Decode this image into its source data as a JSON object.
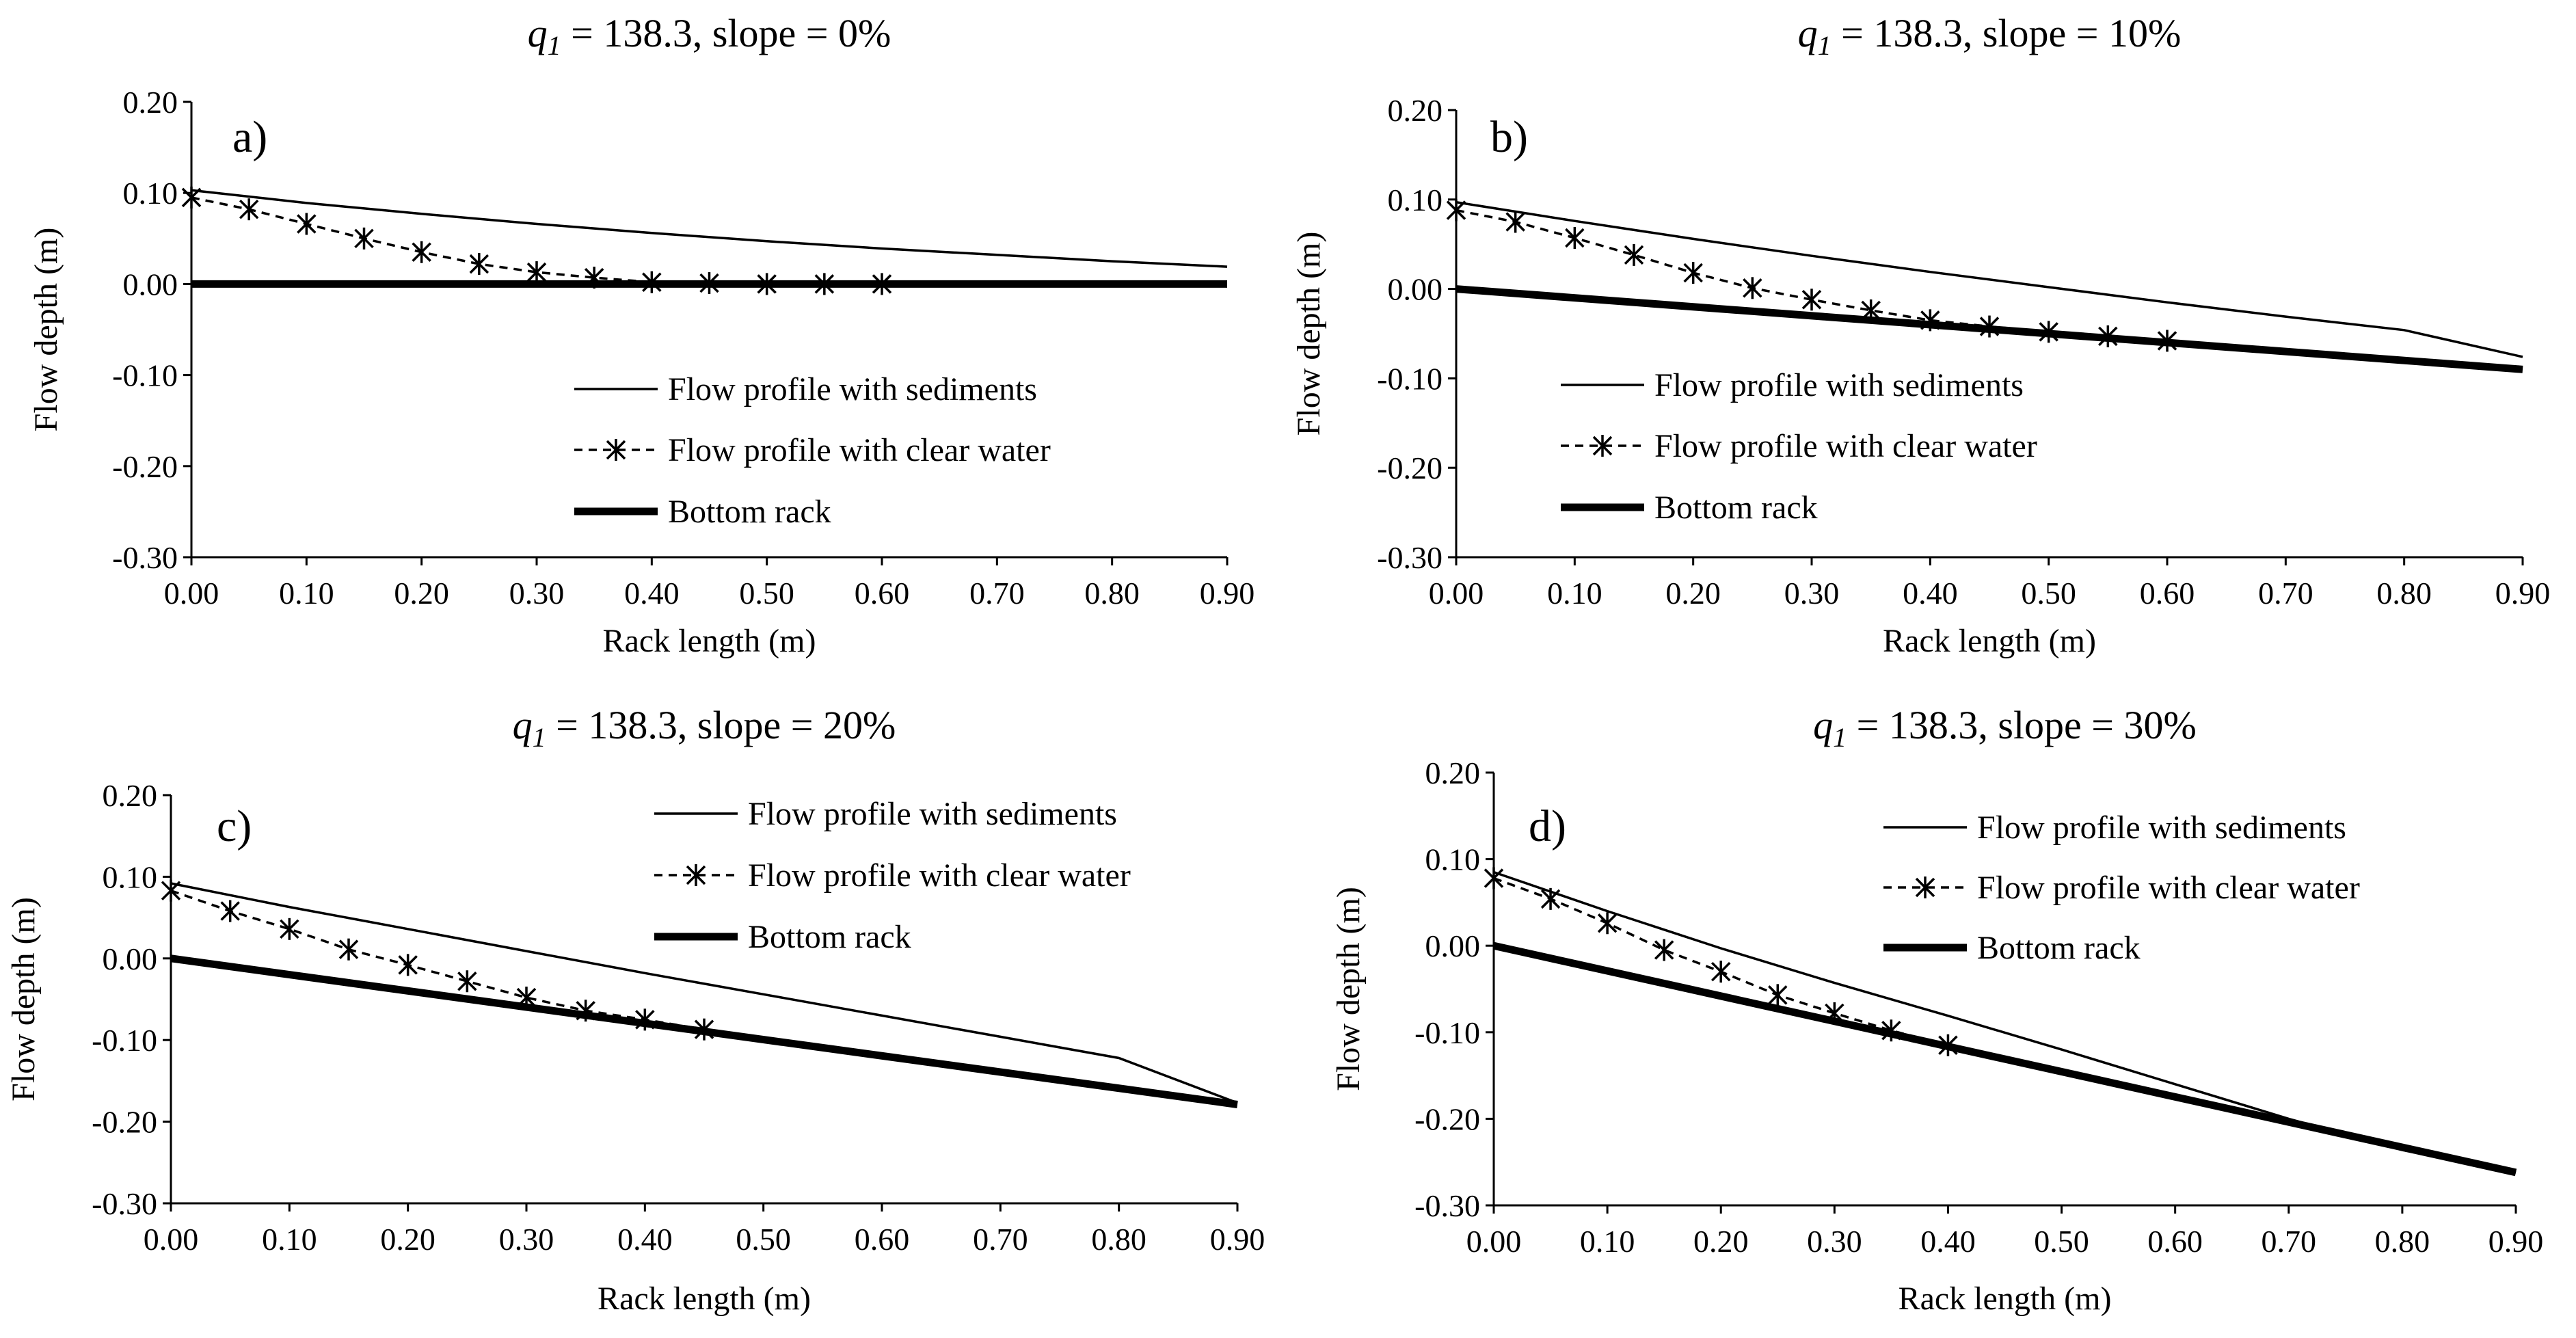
{
  "chart_data": [
    {
      "type": "line",
      "panel_label": "a)",
      "title": {
        "var": "q",
        "sub": "1",
        "rest": " = 138.3,  slope = 0%"
      },
      "xlabel": "Rack length  (m)",
      "ylabel": "Flow depth (m)",
      "xlim": [
        0,
        0.9
      ],
      "ylim": [
        -0.3,
        0.2
      ],
      "x_ticks": [
        "0.00",
        "0.10",
        "0.20",
        "0.30",
        "0.40",
        "0.50",
        "0.60",
        "0.70",
        "0.80",
        "0.90"
      ],
      "y_ticks": [
        "0.20",
        "0.10",
        "0.00",
        "-0.10",
        "-0.20",
        "-0.30"
      ],
      "legend_position": "lower-right",
      "series": [
        {
          "name": "Flow profile with sediments",
          "style": "thin",
          "x": [
            0,
            0.1,
            0.2,
            0.3,
            0.4,
            0.5,
            0.6,
            0.7,
            0.8,
            0.9
          ],
          "y": [
            0.103,
            0.089,
            0.077,
            0.066,
            0.056,
            0.047,
            0.039,
            0.032,
            0.025,
            0.019
          ]
        },
        {
          "name": "Flow profile with clear water",
          "style": "dashed-star",
          "x": [
            0,
            0.05,
            0.1,
            0.15,
            0.2,
            0.25,
            0.3,
            0.35,
            0.4,
            0.45,
            0.5,
            0.55,
            0.6
          ],
          "y": [
            0.095,
            0.082,
            0.066,
            0.05,
            0.035,
            0.022,
            0.013,
            0.007,
            0.002,
            0.001,
            0.0,
            0.0,
            0.0
          ]
        },
        {
          "name": "Bottom rack",
          "style": "thick",
          "x": [
            0,
            0.9
          ],
          "y": [
            0.0,
            0.0
          ]
        }
      ]
    },
    {
      "type": "line",
      "panel_label": "b)",
      "title": {
        "var": "q",
        "sub": "1",
        "rest": " = 138.3,  slope = 10%"
      },
      "xlabel": "Rack length  (m)",
      "ylabel": "Flow depth (m)",
      "xlim": [
        0,
        0.9
      ],
      "ylim": [
        -0.3,
        0.2
      ],
      "x_ticks": [
        "0.00",
        "0.10",
        "0.20",
        "0.30",
        "0.40",
        "0.50",
        "0.60",
        "0.70",
        "0.80",
        "0.90"
      ],
      "y_ticks": [
        "0.20",
        "0.10",
        "0.00",
        "-0.10",
        "-0.20",
        "-0.30"
      ],
      "legend_position": "lower-center",
      "series": [
        {
          "name": "Flow profile with sediments",
          "style": "thin",
          "x": [
            0,
            0.1,
            0.2,
            0.3,
            0.4,
            0.5,
            0.6,
            0.7,
            0.8,
            0.9
          ],
          "y": [
            0.097,
            0.076,
            0.056,
            0.037,
            0.019,
            0.002,
            -0.015,
            -0.031,
            -0.046,
            -0.076
          ]
        },
        {
          "name": "Flow profile with clear water",
          "style": "dashed-star",
          "x": [
            0,
            0.05,
            0.1,
            0.15,
            0.2,
            0.25,
            0.3,
            0.35,
            0.4,
            0.45,
            0.5,
            0.55,
            0.6
          ],
          "y": [
            0.088,
            0.075,
            0.057,
            0.038,
            0.018,
            0.001,
            -0.012,
            -0.024,
            -0.035,
            -0.042,
            -0.048,
            -0.053,
            -0.058
          ]
        },
        {
          "name": "Bottom rack",
          "style": "thick",
          "x": [
            0,
            0.9
          ],
          "y": [
            0.0,
            -0.09
          ]
        }
      ]
    },
    {
      "type": "line",
      "panel_label": "c)",
      "title": {
        "var": "q",
        "sub": "1",
        "rest": " = 138.3,  slope = 20%"
      },
      "xlabel": "Rack length  (m)",
      "ylabel": "Flow depth (m)",
      "xlim": [
        0,
        0.9
      ],
      "ylim": [
        -0.3,
        0.2
      ],
      "x_ticks": [
        "0.00",
        "0.10",
        "0.20",
        "0.30",
        "0.40",
        "0.50",
        "0.60",
        "0.70",
        "0.80",
        "0.90"
      ],
      "y_ticks": [
        "0.20",
        "0.10",
        "0.00",
        "-0.10",
        "-0.20",
        "-0.30"
      ],
      "legend_position": "top-center",
      "series": [
        {
          "name": "Flow profile with sediments",
          "style": "thin",
          "x": [
            0,
            0.1,
            0.2,
            0.3,
            0.4,
            0.5,
            0.6,
            0.7,
            0.8,
            0.9
          ],
          "y": [
            0.092,
            0.063,
            0.036,
            0.009,
            -0.018,
            -0.044,
            -0.07,
            -0.096,
            -0.122,
            -0.177
          ]
        },
        {
          "name": "Flow profile with clear water",
          "style": "dashed-star",
          "x": [
            0,
            0.05,
            0.1,
            0.15,
            0.2,
            0.25,
            0.3,
            0.35,
            0.4,
            0.45
          ],
          "y": [
            0.083,
            0.058,
            0.036,
            0.011,
            -0.008,
            -0.028,
            -0.048,
            -0.064,
            -0.075,
            -0.087
          ]
        },
        {
          "name": "Bottom rack",
          "style": "thick",
          "x": [
            0,
            0.9
          ],
          "y": [
            0.0,
            -0.179
          ]
        }
      ]
    },
    {
      "type": "line",
      "panel_label": "d)",
      "title": {
        "var": "q",
        "sub": "1",
        "rest": " = 138.3,  slope = 30%"
      },
      "xlabel": "Rack length  (m)",
      "ylabel": "Flow depth (m)",
      "xlim": [
        0,
        0.9
      ],
      "ylim": [
        -0.3,
        0.2
      ],
      "x_ticks": [
        "0.00",
        "0.10",
        "0.20",
        "0.30",
        "0.40",
        "0.50",
        "0.60",
        "0.70",
        "0.80",
        "0.90"
      ],
      "y_ticks": [
        "0.20",
        "0.10",
        "0.00",
        "-0.10",
        "-0.20",
        "-0.30"
      ],
      "legend_position": "top-center",
      "series": [
        {
          "name": "Flow profile with sediments",
          "style": "thin",
          "x": [
            0,
            0.1,
            0.2,
            0.3,
            0.4,
            0.5,
            0.6,
            0.7,
            0.8,
            0.9
          ],
          "y": [
            0.085,
            0.04,
            -0.003,
            -0.043,
            -0.081,
            -0.12,
            -0.16,
            -0.2,
            -0.236,
            -0.262
          ]
        },
        {
          "name": "Flow profile with clear water",
          "style": "dashed-star",
          "x": [
            0,
            0.05,
            0.1,
            0.15,
            0.2,
            0.25,
            0.3,
            0.35,
            0.4
          ],
          "y": [
            0.078,
            0.054,
            0.026,
            -0.005,
            -0.03,
            -0.057,
            -0.078,
            -0.098,
            -0.115
          ]
        },
        {
          "name": "Bottom rack",
          "style": "thick",
          "x": [
            0,
            0.9
          ],
          "y": [
            0.0,
            -0.262
          ]
        }
      ]
    }
  ]
}
